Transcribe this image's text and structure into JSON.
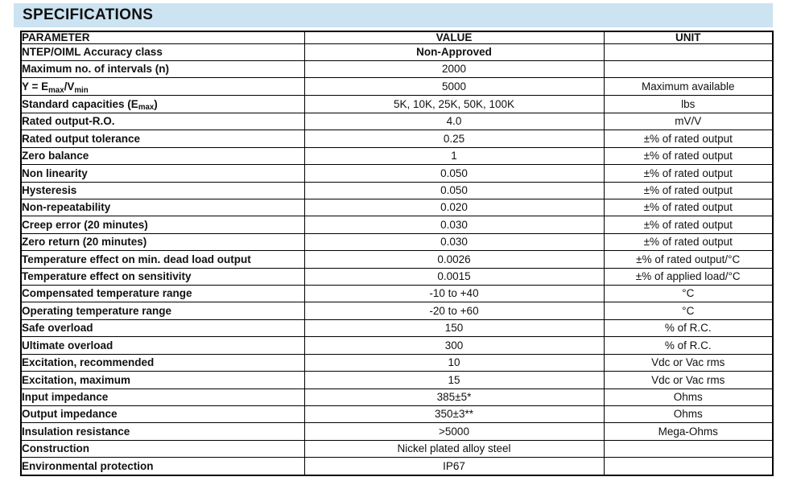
{
  "title": "SPECIFICATIONS",
  "colors": {
    "title_band_background": "#cce3f1",
    "table_border": "#000000",
    "text": "#111111"
  },
  "table": {
    "columns": [
      "PARAMETER",
      "VALUE",
      "UNIT"
    ],
    "rows": [
      {
        "parameter": "NTEP/OIML Accuracy class",
        "value": "Non-Approved",
        "unit": "",
        "value_bold": true
      },
      {
        "parameter": "Maximum no. of intervals (n)",
        "value": "2000",
        "unit": ""
      },
      {
        "parameter": "Y = E_{max}/V_{min}",
        "value": "5000",
        "unit": "Maximum available"
      },
      {
        "parameter": "Standard capacities (E_{max})",
        "value": "5K, 10K, 25K, 50K, 100K",
        "unit": "lbs"
      },
      {
        "parameter": "Rated output-R.O.",
        "value": "4.0",
        "unit": "mV/V"
      },
      {
        "parameter": "Rated output tolerance",
        "value": "0.25",
        "unit": "±% of rated output"
      },
      {
        "parameter": "Zero balance",
        "value": "1",
        "unit": "±% of rated output"
      },
      {
        "parameter": "Non linearity",
        "value": "0.050",
        "unit": "±% of rated output"
      },
      {
        "parameter": "Hysteresis",
        "value": "0.050",
        "unit": "±% of rated output"
      },
      {
        "parameter": "Non-repeatability",
        "value": "0.020",
        "unit": "±% of rated output"
      },
      {
        "parameter": "Creep error (20 minutes)",
        "value": "0.030",
        "unit": "±% of rated output"
      },
      {
        "parameter": "Zero return (20 minutes)",
        "value": "0.030",
        "unit": "±% of rated output"
      },
      {
        "parameter": "Temperature effect on min. dead load output",
        "value": "0.0026",
        "unit": "±% of rated output/°C"
      },
      {
        "parameter": "Temperature effect on sensitivity",
        "value": "0.0015",
        "unit": "±% of applied load/°C"
      },
      {
        "parameter": "Compensated temperature range",
        "value": "-10 to +40",
        "unit": "°C"
      },
      {
        "parameter": "Operating temperature range",
        "value": "-20 to +60",
        "unit": "°C"
      },
      {
        "parameter": "Safe overload",
        "value": "150",
        "unit": "% of R.C."
      },
      {
        "parameter": "Ultimate overload",
        "value": "300",
        "unit": "% of R.C."
      },
      {
        "parameter": "Excitation, recommended",
        "value": "10",
        "unit": "Vdc or Vac rms"
      },
      {
        "parameter": "Excitation, maximum",
        "value": "15",
        "unit": "Vdc or Vac rms"
      },
      {
        "parameter": "Input impedance",
        "value": "385±5*",
        "unit": "Ohms"
      },
      {
        "parameter": "Output impedance",
        "value": "350±3**",
        "unit": "Ohms"
      },
      {
        "parameter": "Insulation resistance",
        "value": ">5000",
        "unit": "Mega-Ohms"
      },
      {
        "parameter": "Construction",
        "value": "Nickel plated alloy steel",
        "unit": ""
      },
      {
        "parameter": "Environmental protection",
        "value": "IP67",
        "unit": ""
      }
    ]
  }
}
